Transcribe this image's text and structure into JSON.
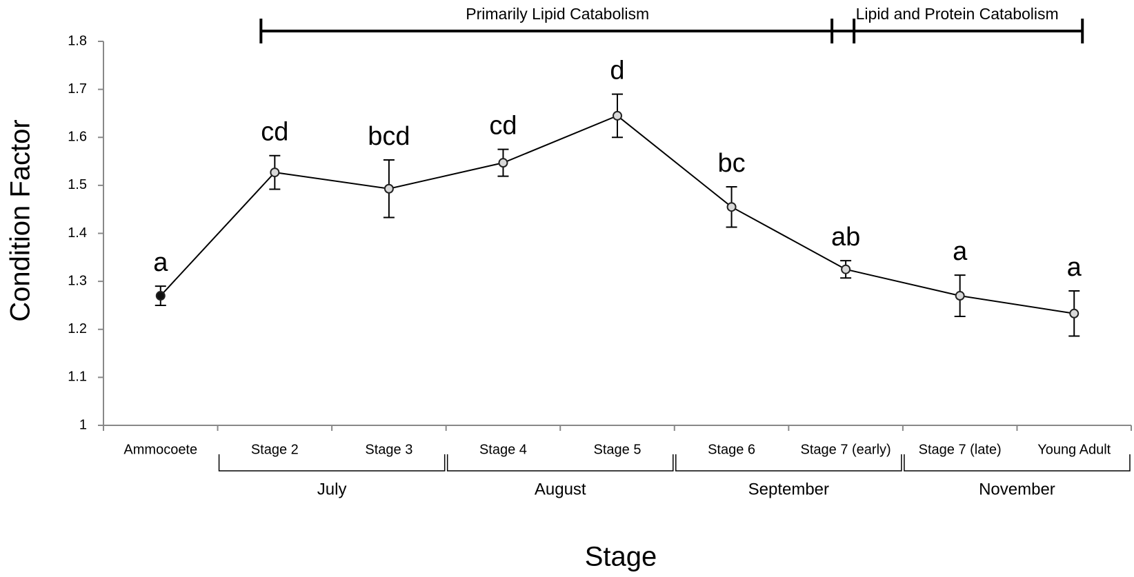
{
  "chart_data": {
    "type": "line",
    "x_label": "Stage",
    "y_label": "Condition Factor",
    "categories": [
      "Ammocoete",
      "Stage 2",
      "Stage 3",
      "Stage 4",
      "Stage 5",
      "Stage 6",
      "Stage 7 (early)",
      "Stage 7 (late)",
      "Young Adult"
    ],
    "series": [
      {
        "color": "#000000",
        "values": [
          1.27,
          1.527,
          1.493,
          1.547,
          1.645,
          1.455,
          1.325,
          1.27,
          1.233
        ],
        "errors": [
          0.02,
          0.035,
          0.06,
          0.028,
          0.045,
          0.042,
          0.018,
          0.043,
          0.047
        ],
        "marker_colors": [
          "#111111",
          "#d9d9d9",
          "#d9d9d9",
          "#d9d9d9",
          "#d9d9d9",
          "#d9d9d9",
          "#d9d9d9",
          "#d9d9d9",
          "#d9d9d9"
        ],
        "significance_letters": [
          "a",
          "cd",
          "bcd",
          "cd",
          "d",
          "bc",
          "ab",
          "a",
          "a"
        ]
      }
    ],
    "groups": [
      {
        "label": "July",
        "start": 1,
        "end": 2
      },
      {
        "label": "August",
        "start": 3,
        "end": 4
      },
      {
        "label": "September",
        "start": 5,
        "end": 6
      },
      {
        "label": "November",
        "start": 7,
        "end": 8
      }
    ],
    "periods": [
      {
        "label": "Primarily Lipid Catabolism",
        "start": 1,
        "end": 6
      },
      {
        "label": "Lipid and Protein Catabolism",
        "start": 6,
        "end": 8
      }
    ],
    "ylim": [
      1,
      1.8
    ],
    "yticks": [
      1,
      1.1,
      1.2,
      1.3,
      1.4,
      1.5,
      1.6,
      1.7,
      1.8
    ],
    "grid": false
  }
}
